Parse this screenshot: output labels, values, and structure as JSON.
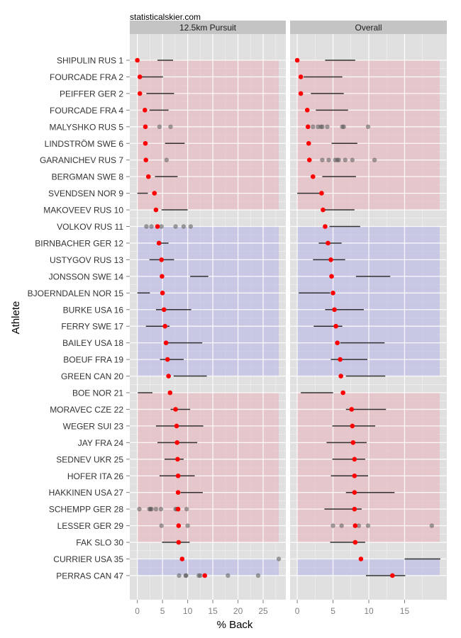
{
  "chart_data": {
    "type": "scatter",
    "source_label": "statisticalskier.com",
    "xlabel": "% Back",
    "ylabel": "Athlete",
    "grid": true,
    "legend": "none",
    "athletes": [
      "SHIPULIN RUS 1",
      "FOURCADE FRA 2",
      "PEIFFER GER 2",
      "FOURCADE FRA 4",
      "MALYSHKO RUS 5",
      "LINDSTRÖM SWE 6",
      "GARANICHEV RUS 7",
      "BERGMAN SWE 8",
      "SVENDSEN NOR 9",
      "MAKOVEEV RUS 10",
      "VOLKOV RUS 11",
      "BIRNBACHER GER 12",
      "USTYGOV RUS 13",
      "JONSSON SWE 14",
      "BJOERNDALEN NOR 15",
      "BURKE USA 16",
      "FERRY SWE 17",
      "BAILEY USA 18",
      "BOEUF FRA 19",
      "GREEN CAN 20",
      "BOE NOR 21",
      "MORAVEC CZE 22",
      "WEGER SUI 23",
      "JAY FRA 24",
      "SEDNEV UKR 25",
      "HOFER ITA 26",
      "HAKKINEN USA 27",
      "SCHEMPP GER 28",
      "LESSER GER 29",
      "FAK SLO 30",
      "CURRIER USA 35",
      "PERRAS CAN 47"
    ],
    "bands": [
      {
        "from": 0,
        "to": 9,
        "color": "#e8b4bd"
      },
      {
        "from": 10,
        "to": 19,
        "color": "#b8b8e8"
      },
      {
        "from": 20,
        "to": 29,
        "color": "#e8b4bd"
      },
      {
        "from": 30,
        "to": 31,
        "color": "#b8b8e8"
      }
    ],
    "panels": [
      {
        "title": "12.5km Pursuit",
        "xlim": [
          -1.5,
          29.5
        ],
        "xticks": [
          0,
          5,
          10,
          15,
          20,
          25
        ],
        "band_xmax": 28.1,
        "current": [
          0.0,
          0.5,
          0.5,
          1.5,
          1.6,
          1.6,
          1.7,
          2.2,
          3.4,
          3.7,
          4.0,
          4.3,
          4.8,
          4.9,
          5.0,
          5.3,
          5.5,
          5.7,
          6.0,
          6.2,
          6.5,
          7.6,
          7.8,
          7.9,
          8.0,
          8.1,
          8.1,
          8.1,
          8.2,
          8.2,
          8.9,
          13.4
        ],
        "ranges": [
          [
            4.0,
            7.1
          ],
          [
            0.5,
            5.1
          ],
          [
            1.8,
            7.3
          ],
          [
            2.4,
            6.2
          ],
          null,
          [
            5.5,
            9.4
          ],
          null,
          [
            3.5,
            8.0
          ],
          [
            0.0,
            2.1
          ],
          [
            4.8,
            10.0
          ],
          null,
          [
            3.9,
            6.2
          ],
          [
            2.4,
            7.3
          ],
          [
            10.5,
            14.1
          ],
          [
            0.0,
            2.5
          ],
          [
            3.7,
            10.7
          ],
          [
            1.7,
            6.4
          ],
          [
            5.6,
            12.9
          ],
          [
            4.5,
            9.2
          ],
          [
            7.2,
            13.8
          ],
          [
            0.1,
            3.0
          ],
          [
            6.6,
            10.5
          ],
          [
            3.7,
            13.1
          ],
          [
            4.0,
            11.9
          ],
          [
            5.4,
            9.2
          ],
          [
            4.4,
            11.4
          ],
          [
            8.6,
            13.0
          ],
          null,
          null,
          [
            4.9,
            10.4
          ],
          null,
          null
        ],
        "history": [
          [],
          [],
          [],
          [],
          [
            4.4,
            6.6
          ],
          [],
          [
            5.8
          ],
          [],
          [],
          [],
          [
            1.8,
            2.8,
            4.8,
            7.6,
            9.2,
            10.6
          ],
          [],
          [],
          [],
          [],
          [],
          [],
          [],
          [],
          [],
          [],
          [],
          [],
          [],
          [],
          [],
          [],
          [
            0.4,
            2.4,
            2.6,
            2.8,
            3.7,
            4.7,
            7.6,
            7.8,
            9.8
          ],
          [
            4.8,
            10.0
          ],
          [],
          [
            28.1
          ],
          [
            8.3,
            9.6,
            9.7,
            12.2,
            12.5,
            18.0,
            24.0
          ]
        ]
      },
      {
        "title": "Overall",
        "xlim": [
          -1.0,
          20.9
        ],
        "xticks": [
          0,
          5,
          10,
          15
        ],
        "band_xmax": 19.9,
        "current": [
          0.0,
          0.5,
          0.5,
          1.4,
          1.5,
          1.6,
          1.7,
          2.2,
          3.4,
          3.6,
          3.9,
          4.3,
          4.7,
          4.8,
          5.0,
          5.2,
          5.4,
          5.6,
          6.0,
          6.1,
          6.4,
          7.6,
          7.7,
          7.8,
          8.0,
          8.0,
          8.0,
          8.0,
          8.1,
          8.1,
          8.9,
          13.3
        ],
        "ranges": [
          [
            3.9,
            8.1
          ],
          [
            0.9,
            6.3
          ],
          [
            1.9,
            6.5
          ],
          [
            2.6,
            7.1
          ],
          null,
          [
            4.8,
            8.4
          ],
          null,
          [
            3.5,
            8.2
          ],
          [
            0.0,
            3.1
          ],
          [
            3.9,
            8.0
          ],
          [
            4.5,
            8.8
          ],
          [
            3.0,
            6.2
          ],
          [
            2.2,
            6.7
          ],
          [
            8.2,
            13.0
          ],
          [
            0.2,
            4.6
          ],
          [
            3.9,
            9.3
          ],
          [
            2.3,
            6.3
          ],
          [
            6.0,
            12.2
          ],
          [
            4.7,
            9.8
          ],
          [
            6.8,
            12.3
          ],
          [
            0.5,
            5.0
          ],
          [
            6.8,
            12.4
          ],
          [
            4.9,
            10.9
          ],
          [
            4.1,
            9.7
          ],
          [
            4.9,
            9.5
          ],
          [
            4.7,
            9.9
          ],
          [
            6.8,
            13.6
          ],
          [
            3.8,
            9.0
          ],
          null,
          [
            4.6,
            9.5
          ],
          [
            15.0,
            20.0
          ],
          [
            9.6,
            15.1
          ]
        ],
        "history": [
          [],
          [],
          [],
          [],
          [
            2.2,
            2.9,
            3.3,
            3.5,
            4.2,
            6.3,
            6.5,
            9.9
          ],
          [],
          [
            3.5,
            4.4,
            5.3,
            5.6,
            5.8,
            6.7,
            7.7,
            10.8
          ],
          [],
          [],
          [],
          [],
          [],
          [],
          [],
          [],
          [],
          [],
          [],
          [],
          [],
          [],
          [],
          [],
          [],
          [],
          [],
          [],
          [],
          [
            5.0,
            6.2,
            8.6,
            9.9,
            18.8
          ],
          [],
          [],
          []
        ]
      }
    ],
    "colors": {
      "current_point": "#ff0000",
      "history_point": "#555555",
      "range_line": "#000000",
      "panel_bg": "#e0e0e0",
      "strip_bg": "#c4c4c4"
    }
  }
}
